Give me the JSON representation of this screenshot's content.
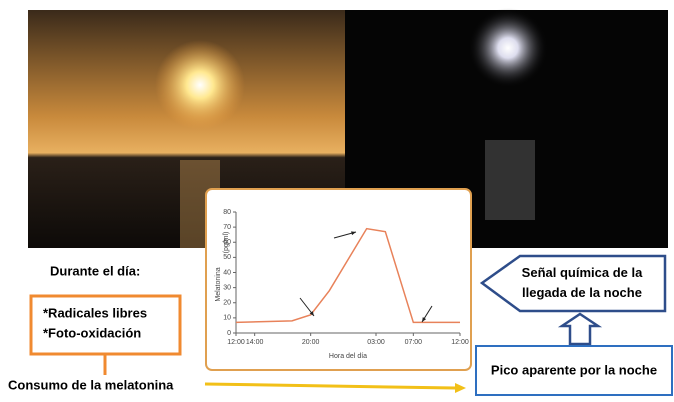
{
  "chart_data": {
    "type": "line",
    "xlabel": "Hora del día",
    "ylabel": "Melatonina",
    "ylabel_unit": "(pg/ml)",
    "x": [
      0,
      6,
      8,
      10,
      14,
      16,
      19,
      24
    ],
    "series": [
      {
        "name": "Melatonina",
        "color": "#e8825a",
        "values": [
          7,
          8,
          12,
          28,
          69,
          67,
          7,
          7
        ]
      }
    ],
    "xlim": [
      0,
      24
    ],
    "xticks": [
      {
        "value": 0,
        "label": "12:00"
      },
      {
        "value": 2,
        "label": "14:00"
      },
      {
        "value": 8,
        "label": "20:00"
      },
      {
        "value": 15,
        "label": "03:00"
      },
      {
        "value": 19,
        "label": "07:00"
      },
      {
        "value": 24,
        "label": "12:00"
      }
    ],
    "ylim": [
      0,
      80
    ],
    "yticks": [
      0,
      10,
      20,
      30,
      40,
      50,
      60,
      70,
      80
    ]
  },
  "day": {
    "title": "Durante el día:",
    "items": [
      "*Radicales libres",
      "*Foto-oxidación"
    ]
  },
  "consumption": "Consumo de la melatonina",
  "signal": "Señal química de la llegada de la noche",
  "peak": "Pico aparente por la noche"
}
